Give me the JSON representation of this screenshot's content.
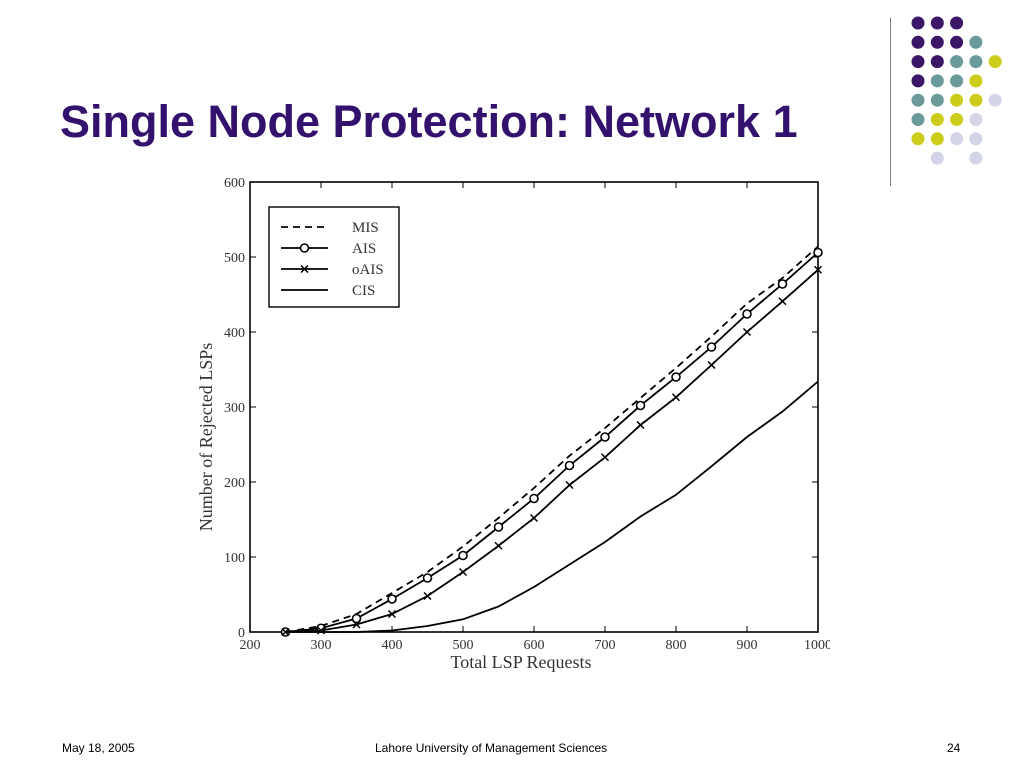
{
  "slide": {
    "title": "Single Node Protection: Network 1",
    "footer_date": "May 18, 2005",
    "footer_org": "Lahore University of Management Sciences",
    "page_number": "24"
  },
  "decoration": {
    "colors": {
      "purple": "#3b1566",
      "teal": "#6b9a9b",
      "lime": "#cccc1a",
      "lavender": "#d4d4e8"
    },
    "grid": [
      [
        "purple",
        "purple",
        "purple",
        null,
        null
      ],
      [
        "purple",
        "purple",
        "purple",
        "teal",
        null
      ],
      [
        "purple",
        "purple",
        "teal",
        "teal",
        "lime"
      ],
      [
        "purple",
        "teal",
        "teal",
        "lime",
        null
      ],
      [
        "teal",
        "teal",
        "lime",
        "lime",
        "lavender"
      ],
      [
        "teal",
        "lime",
        "lime",
        "lavender",
        null
      ],
      [
        "lime",
        "lime",
        "lavender",
        "lavender",
        null
      ],
      [
        null,
        "lavender",
        null,
        "lavender",
        null
      ]
    ]
  },
  "chart_data": {
    "type": "line",
    "title": "",
    "xlabel": "Total LSP Requests",
    "ylabel": "Number of Rejected LSPs",
    "xlim": [
      200,
      1000
    ],
    "ylim": [
      0,
      600
    ],
    "x_ticks": [
      200,
      300,
      400,
      500,
      600,
      700,
      800,
      900,
      1000
    ],
    "y_ticks": [
      0,
      100,
      200,
      300,
      400,
      500,
      600
    ],
    "legend_position": "top-left",
    "grid": false,
    "x": [
      250,
      300,
      350,
      400,
      450,
      500,
      550,
      600,
      650,
      700,
      750,
      800,
      850,
      900,
      950,
      1000
    ],
    "series": [
      {
        "name": "MIS",
        "style": "dashed",
        "marker": "none",
        "values": [
          0,
          8,
          24,
          52,
          80,
          114,
          152,
          192,
          235,
          272,
          312,
          352,
          394,
          438,
          472,
          514
        ]
      },
      {
        "name": "AIS",
        "style": "solid",
        "marker": "circle",
        "values": [
          0,
          5,
          18,
          44,
          72,
          102,
          140,
          178,
          222,
          260,
          302,
          340,
          380,
          424,
          464,
          506
        ]
      },
      {
        "name": "oAIS",
        "style": "solid",
        "marker": "x",
        "values": [
          0,
          2,
          10,
          24,
          48,
          80,
          115,
          152,
          196,
          233,
          276,
          313,
          356,
          400,
          441,
          483
        ]
      },
      {
        "name": "CIS",
        "style": "solid",
        "marker": "none",
        "values": [
          0,
          0,
          0,
          2,
          8,
          17,
          34,
          60,
          90,
          120,
          154,
          183,
          221,
          260,
          294,
          334
        ]
      }
    ]
  }
}
